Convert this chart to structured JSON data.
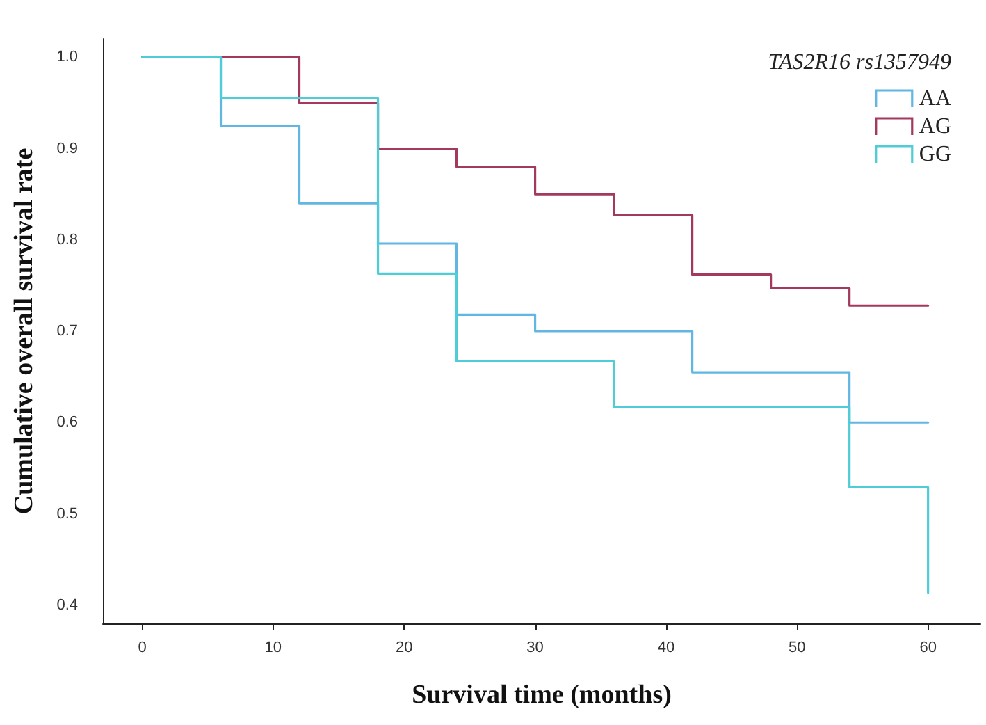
{
  "chart_data": {
    "type": "step",
    "xlabel": "Survival time (months)",
    "ylabel": "Cumulative overall survival rate",
    "legend_title": "TAS2R16 rs1357949",
    "series": [
      {
        "name": "AA",
        "color": "#62b6e2",
        "x": [
          0,
          6,
          12,
          18,
          24,
          30,
          42,
          54,
          60
        ],
        "values": [
          1.0,
          0.925,
          0.84,
          0.796,
          0.718,
          0.7,
          0.655,
          0.6,
          0.6
        ]
      },
      {
        "name": "AG",
        "color": "#a3395c",
        "x": [
          0,
          12,
          18,
          24,
          30,
          36,
          42,
          48,
          54,
          60
        ],
        "values": [
          1.0,
          0.95,
          0.9,
          0.88,
          0.85,
          0.827,
          0.762,
          0.747,
          0.728,
          0.728
        ]
      },
      {
        "name": "GG",
        "color": "#4fcdd6",
        "x": [
          0,
          6,
          18,
          24,
          36,
          54,
          60,
          60
        ],
        "values": [
          1.0,
          0.955,
          0.763,
          0.667,
          0.617,
          0.529,
          0.529,
          0.413
        ]
      }
    ],
    "xlim": [
      -3,
      64
    ],
    "xticks": [
      0,
      10,
      20,
      30,
      40,
      50,
      60
    ],
    "ylim": [
      0.38,
      1.02
    ],
    "yticks": [
      {
        "value": 0.4,
        "label": "0.4"
      },
      {
        "value": 0.5,
        "label": "0.5"
      },
      {
        "value": 0.6,
        "label": "0.6"
      },
      {
        "value": 0.7,
        "label": "0.7"
      },
      {
        "value": 0.8,
        "label": "0.8"
      },
      {
        "value": 0.9,
        "label": "0.9"
      },
      {
        "value": 1,
        "label": "1.0"
      }
    ],
    "grid": false,
    "legend": "top right",
    "marker": "none",
    "line_style": "solid"
  }
}
